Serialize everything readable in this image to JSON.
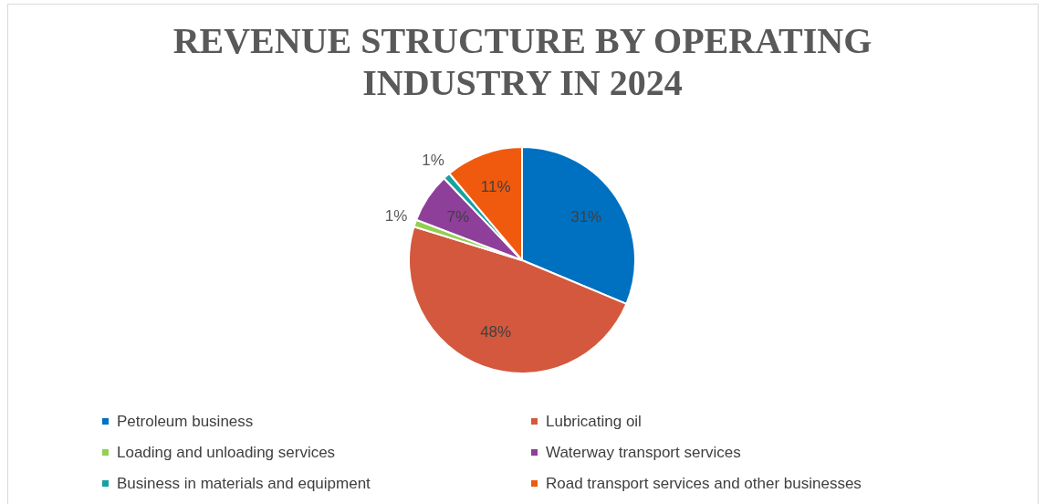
{
  "chart_data": {
    "type": "pie",
    "title": "REVENUE STRUCTURE BY OPERATING INDUSTRY IN 2024",
    "categories": [
      "Petroleum business",
      "Lubricating oil",
      "Loading and unloading services",
      "Waterway transport services",
      "Business in materials and equipment",
      "Road transport services and other businesses"
    ],
    "values": [
      31,
      48,
      1,
      7,
      1,
      11
    ],
    "colors": [
      "#0070c0",
      "#d4583d",
      "#92d050",
      "#8e3f9a",
      "#17a2a0",
      "#f05a0f"
    ],
    "value_labels": [
      "31%",
      "48%",
      "1%",
      "7%",
      "1%",
      "11%"
    ],
    "legend": "bottom"
  }
}
